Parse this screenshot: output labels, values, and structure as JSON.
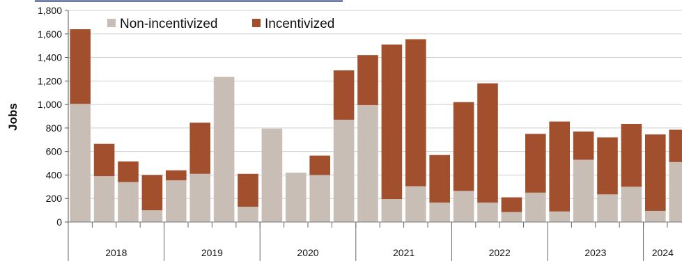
{
  "chart_data": {
    "type": "bar",
    "stacked": true,
    "title": "",
    "xlabel": "",
    "ylabel": "Jobs",
    "ylim": [
      0,
      1800
    ],
    "yticks": [
      0,
      200,
      400,
      600,
      800,
      1000,
      1200,
      1400,
      1600,
      1800
    ],
    "ytick_labels": [
      "0",
      "200",
      "400",
      "600",
      "800",
      "1,000",
      "1,200",
      "1,400",
      "1,600",
      "1,800"
    ],
    "grid": true,
    "legend_position": "top-left",
    "year_groups": [
      {
        "label": "2018",
        "quarters": 4
      },
      {
        "label": "2019",
        "quarters": 4
      },
      {
        "label": "2020",
        "quarters": 4
      },
      {
        "label": "2021",
        "quarters": 4
      },
      {
        "label": "2022",
        "quarters": 4
      },
      {
        "label": "2023",
        "quarters": 4
      },
      {
        "label": "2024",
        "quarters": 2
      }
    ],
    "series": [
      {
        "name": "Non-incentivized",
        "color": "#c9beb5",
        "values": [
          1005,
          390,
          340,
          100,
          355,
          410,
          1235,
          130,
          795,
          420,
          400,
          870,
          995,
          195,
          305,
          165,
          265,
          165,
          85,
          250,
          90,
          530,
          235,
          300,
          95,
          510
        ]
      },
      {
        "name": "Incentivized",
        "color": "#a24f2e",
        "values": [
          635,
          275,
          175,
          300,
          85,
          435,
          0,
          280,
          0,
          0,
          165,
          420,
          425,
          1315,
          1250,
          405,
          755,
          1015,
          125,
          500,
          765,
          240,
          485,
          535,
          650,
          275
        ]
      }
    ]
  }
}
